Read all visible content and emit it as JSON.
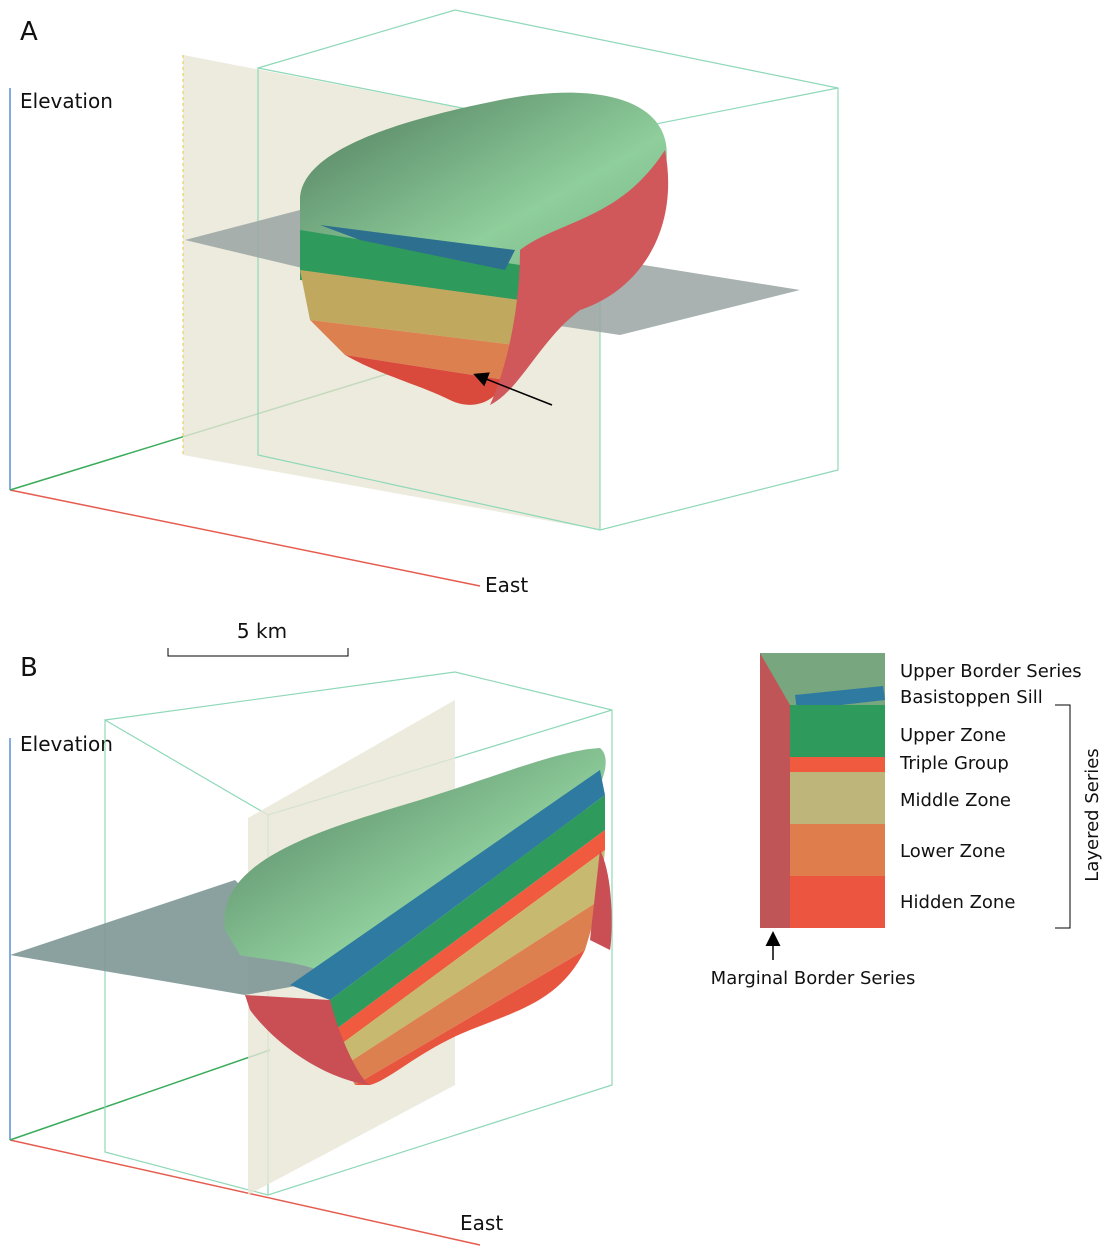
{
  "panels": [
    {
      "label": "A",
      "vertical_axis": "Elevation",
      "horizontal_axis": "East"
    },
    {
      "label": "B",
      "vertical_axis": "Elevation",
      "horizontal_axis": "East"
    }
  ],
  "scale_bar": {
    "label": "5 km"
  },
  "legend": {
    "units": [
      "Upper Border Series",
      "Basistoppen Sill",
      "Upper Zone",
      "Triple Group",
      "Middle Zone",
      "Lower Zone",
      "Hidden Zone"
    ],
    "bracket_label": "Layered Series",
    "arrow_label": "Marginal Border Series"
  }
}
